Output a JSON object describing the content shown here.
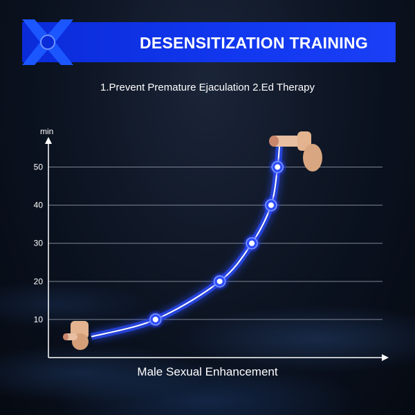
{
  "banner": {
    "title": "DESENSITIZATION TRAINING"
  },
  "subtitle": "1.Prevent Premature Ejaculation   2.Ed Therapy",
  "colors": {
    "banner": "#1238f0",
    "curve": "#2a4dff",
    "accent": "#ffffff"
  },
  "chart_data": {
    "type": "line",
    "title": "DESENSITIZATION TRAINING",
    "xlabel": "Male Sexual Enhancement",
    "ylabel": "min",
    "ylim": [
      0,
      57
    ],
    "yticks": [
      10,
      20,
      30,
      40,
      50
    ],
    "grid": true,
    "series": [
      {
        "points": [
          {
            "x": 0.0,
            "y": 5.5,
            "marker": false
          },
          {
            "x": 1.0,
            "y": 10,
            "marker": true
          },
          {
            "x": 2.0,
            "y": 20,
            "marker": true
          },
          {
            "x": 2.5,
            "y": 30,
            "marker": true
          },
          {
            "x": 2.8,
            "y": 40,
            "marker": true
          },
          {
            "x": 2.9,
            "y": 50,
            "marker": true
          },
          {
            "x": 2.93,
            "y": 55.5,
            "marker": false
          }
        ]
      }
    ]
  }
}
